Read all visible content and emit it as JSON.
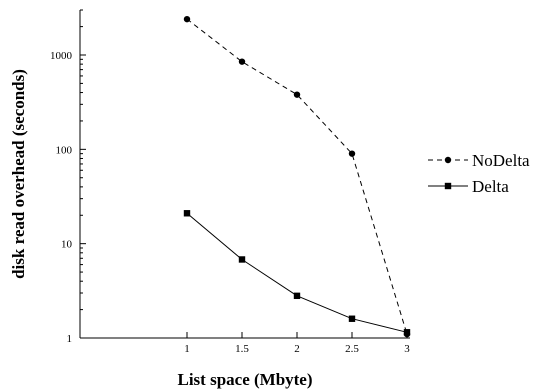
{
  "chart_data": {
    "type": "line",
    "xlabel": "List space (Mbyte)",
    "ylabel": "disk read overhead (seconds)",
    "x": [
      1,
      1.5,
      2,
      2.5,
      3
    ],
    "x_ticks": [
      "1",
      "1.5",
      "2",
      "2.5",
      "3"
    ],
    "xlim": [
      0,
      3
    ],
    "yscale": "log",
    "ylim": [
      1,
      3000
    ],
    "y_ticks": [
      "1",
      "10",
      "100",
      "1000"
    ],
    "grid": false,
    "legend_position": "right",
    "series": [
      {
        "name": "NoDelta",
        "values": [
          2400,
          850,
          380,
          90,
          1.1
        ],
        "line_style": "dashed",
        "marker": "circle",
        "color": "#000000"
      },
      {
        "name": "Delta",
        "values": [
          21,
          6.8,
          2.8,
          1.6,
          1.15
        ],
        "line_style": "solid",
        "marker": "square",
        "color": "#000000"
      }
    ]
  }
}
